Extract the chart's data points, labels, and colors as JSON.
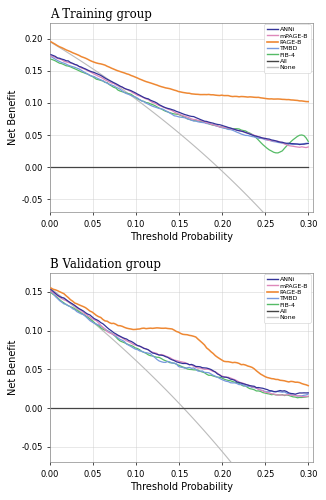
{
  "panel_A_title": "A Training group",
  "panel_B_title": "B Validation group",
  "xlabel": "Threshold Probability",
  "ylabel": "Net Benefit",
  "xlim": [
    0.0,
    0.305
  ],
  "ylim_A": [
    -0.07,
    0.225
  ],
  "ylim_B": [
    -0.07,
    0.175
  ],
  "yticks_A": [
    -0.05,
    0.0,
    0.05,
    0.1,
    0.15,
    0.2
  ],
  "yticks_B": [
    -0.05,
    0.0,
    0.05,
    0.1,
    0.15
  ],
  "xticks": [
    0.0,
    0.05,
    0.1,
    0.15,
    0.2,
    0.25,
    0.3
  ],
  "legend_labels": [
    "ANNi",
    "mPAGE-B",
    "PAGE-B",
    "TMBD",
    "FIB-4",
    "All",
    "None"
  ],
  "colors": {
    "ANNi": "#333399",
    "mPAGE-B": "#dd88bb",
    "PAGE-B": "#ee8833",
    "TMBD": "#7799dd",
    "FIB-4": "#55bb66",
    "All": "#444444",
    "None": "#bbbbbb"
  },
  "prev_A": 0.195,
  "prev_B": 0.155
}
